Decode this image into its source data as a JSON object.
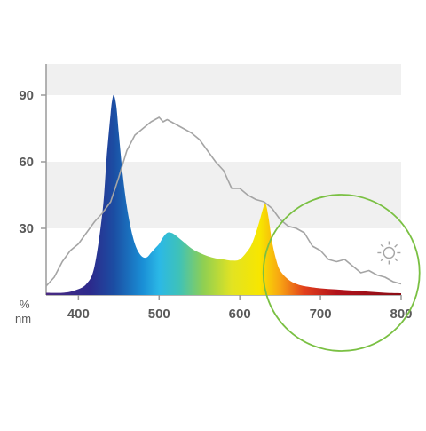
{
  "chart_data": {
    "type": "area",
    "x_unit": "nm",
    "y_unit": "%",
    "xlim": [
      360,
      800
    ],
    "ylim": [
      0,
      104
    ],
    "x_ticks": [
      "400",
      "500",
      "600",
      "700",
      "800"
    ],
    "y_ticks": [
      "30",
      "60",
      "90"
    ],
    "y_bands": [
      [
        30,
        60
      ],
      [
        90,
        104
      ]
    ],
    "grid": false,
    "legend": "none",
    "series": [
      {
        "kind": "filled-spectrum",
        "x": [
          360,
          380,
          395,
          410,
          420,
          430,
          435,
          440,
          442,
          444,
          447,
          450,
          455,
          460,
          465,
          470,
          475,
          480,
          485,
          490,
          495,
          500,
          505,
          510,
          515,
          520,
          530,
          540,
          550,
          560,
          570,
          580,
          590,
          600,
          610,
          615,
          620,
          625,
          628,
          631,
          633,
          636,
          640,
          645,
          650,
          660,
          670,
          680,
          700,
          720,
          740,
          760,
          780,
          800
        ],
        "y": [
          1,
          1,
          2,
          5,
          13,
          38,
          62,
          82,
          88,
          90,
          85,
          73,
          54,
          40,
          30,
          23,
          19,
          17,
          17,
          19,
          21,
          23,
          26,
          28,
          28,
          27,
          24,
          21,
          19,
          17.5,
          16.5,
          16,
          15.5,
          16,
          20,
          23,
          28,
          34,
          38,
          41,
          40,
          34,
          24,
          16,
          11,
          7,
          5,
          4,
          3,
          2.5,
          2,
          1.5,
          1,
          0.8
        ]
      },
      {
        "kind": "line",
        "color": "#a5a5a5",
        "x": [
          360,
          365,
          370,
          380,
          390,
          400,
          410,
          420,
          430,
          440,
          450,
          460,
          470,
          480,
          490,
          500,
          505,
          510,
          520,
          530,
          540,
          550,
          560,
          570,
          580,
          590,
          600,
          610,
          620,
          630,
          640,
          650,
          660,
          670,
          680,
          690,
          700,
          710,
          720,
          730,
          740,
          750,
          760,
          770,
          780,
          790,
          800
        ],
        "y": [
          4,
          6,
          8,
          15,
          20,
          23,
          28,
          33,
          37,
          42,
          53,
          65,
          72,
          75,
          78,
          80,
          78,
          79,
          77,
          75,
          73,
          70,
          65,
          60,
          56,
          48,
          48,
          45,
          43,
          42,
          39,
          34,
          31,
          30,
          28,
          22,
          20,
          16,
          15,
          16,
          13,
          10,
          11,
          9,
          8,
          6,
          5
        ]
      }
    ],
    "annotations": [
      {
        "kind": "circle",
        "center": [
          726,
          10
        ],
        "color": "#7ac043"
      },
      {
        "kind": "sun-icon",
        "at": [
          785,
          19
        ],
        "color": "#a5a5a5"
      }
    ]
  }
}
